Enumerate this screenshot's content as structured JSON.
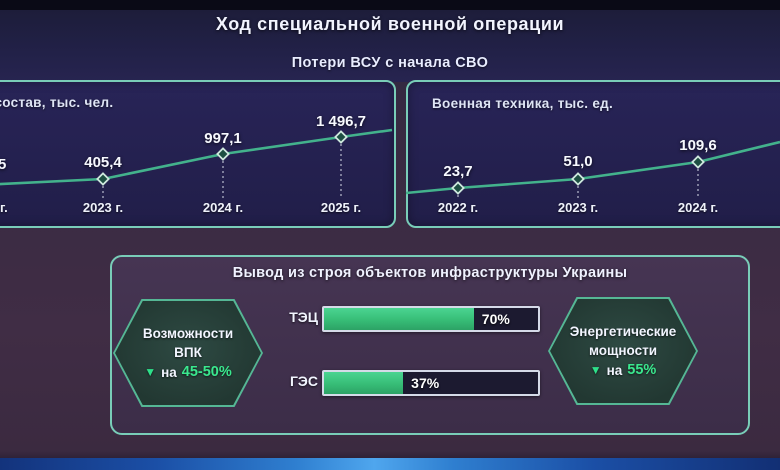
{
  "page_title": "Ход специальной военной операции",
  "losses_section": {
    "subtitle": "Потери ВСУ с начала СВО",
    "personnel_panel": {
      "title": "ый состав, тыс. чел.",
      "cutoff_value_fragment": "5",
      "cutoff_year_fragment": "г.",
      "points": [
        {
          "value_label": "405,4",
          "year_label": "2023 г."
        },
        {
          "value_label": "997,1",
          "year_label": "2024 г."
        },
        {
          "value_label": "1 496,7",
          "year_label": "2025 г."
        }
      ]
    },
    "equipment_panel": {
      "title": "Военная техника, тыс. ед.",
      "points": [
        {
          "value_label": "23,7",
          "year_label": "2022 г."
        },
        {
          "value_label": "51,0",
          "year_label": "2023 г."
        },
        {
          "value_label": "109,6",
          "year_label": "2024 г."
        }
      ]
    }
  },
  "infrastructure_section": {
    "title": "Вывод из строя объектов инфраструктуры Украины",
    "vpk_hexagon": {
      "line1": "Возможности",
      "line2": "ВПК",
      "arrow": "▼",
      "prefix": "на",
      "value": "45-50%"
    },
    "energy_hexagon": {
      "line1": "Энергетические",
      "line2": "мощности",
      "arrow": "▼",
      "prefix": "на",
      "value": "55%"
    },
    "bars": [
      {
        "label": "ТЭЦ",
        "percent": 70,
        "percent_label": "70%"
      },
      {
        "label": "ГЭС",
        "percent": 37,
        "percent_label": "37%"
      }
    ]
  },
  "chart_data": [
    {
      "type": "line",
      "title": "ый состав, тыс. чел.",
      "note": "panel clipped at left edge of frame; first (2022) point cut off",
      "categories": [
        "2023 г.",
        "2024 г.",
        "2025 г."
      ],
      "values": [
        405.4,
        997.1,
        1496.7
      ],
      "unit": "тыс. чел.",
      "legend": "none",
      "grid": false
    },
    {
      "type": "line",
      "title": "Военная техника, тыс. ед.",
      "categories": [
        "2022 г.",
        "2023 г.",
        "2024 г."
      ],
      "values": [
        23.7,
        51.0,
        109.6
      ],
      "unit": "тыс. ед.",
      "legend": "none",
      "grid": false
    },
    {
      "type": "bar",
      "title": "Вывод из строя объектов инфраструктуры Украины",
      "categories": [
        "ТЭЦ",
        "ГЭС"
      ],
      "values": [
        70,
        37
      ],
      "unit": "%",
      "xlim": [
        0,
        100
      ]
    }
  ],
  "colors": {
    "accent_green": "#3ae88e",
    "chart_line_green": "#43b28c",
    "panel_border_teal": "#79cdb8",
    "bar_fill_green": "#3cc47e",
    "title_band_navy": "#1e1e3c",
    "slide_background_plum": "#3a2a42",
    "bottom_glow_blue": "#4fa6ee"
  }
}
